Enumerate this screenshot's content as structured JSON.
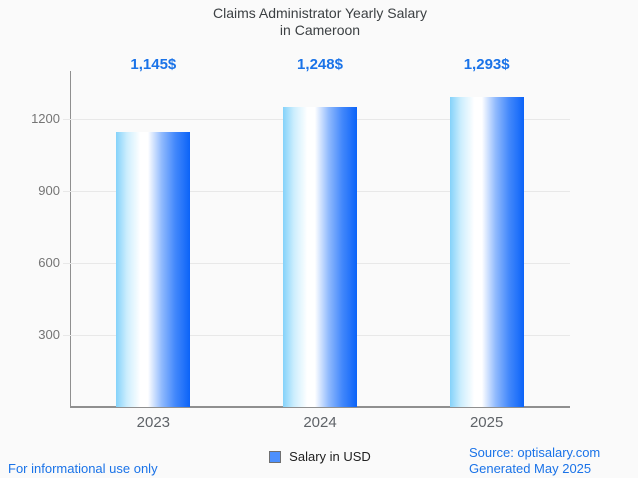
{
  "title": {
    "line1": "Claims Administrator Yearly Salary",
    "line2": "in Cameroon"
  },
  "chart_data": {
    "type": "bar",
    "title": "Claims Administrator Yearly Salary in Cameroon",
    "categories": [
      "2023",
      "2024",
      "2025"
    ],
    "series": [
      {
        "name": "Salary in USD",
        "values": [
          1145,
          1248,
          1293
        ]
      }
    ],
    "value_labels": [
      "1,145$",
      "1,248$",
      "1,293$"
    ],
    "xlabel": "",
    "ylabel": "",
    "ylim": [
      0,
      1400
    ],
    "yticks": [
      300,
      600,
      900,
      1200
    ],
    "grid": true,
    "legend_position": "bottom-center",
    "bar_gradient": [
      "#84D2FA",
      "#FFFFFF",
      "#0B63F8"
    ]
  },
  "legend": {
    "label": "Salary in USD"
  },
  "footer": {
    "left": "For informational use only",
    "source": "Source: optisalary.com",
    "generated": "Generated May 2025"
  },
  "colors": {
    "accent_blue": "#1A73E8",
    "title_text": "#3C4043",
    "axis_line": "#8F8F8F",
    "grid_line": "#E8E8E8",
    "y_tick_text": "#757575",
    "x_tick_text": "#5F6368",
    "legend_text": "#212121",
    "legend_marker_fill": "#4D90FE",
    "legend_marker_border": "#707070",
    "bar_left": "#84D2FA",
    "bar_mid": "#FFFFFF",
    "bar_right": "#0B63F8",
    "background": "#FAFAFA"
  }
}
